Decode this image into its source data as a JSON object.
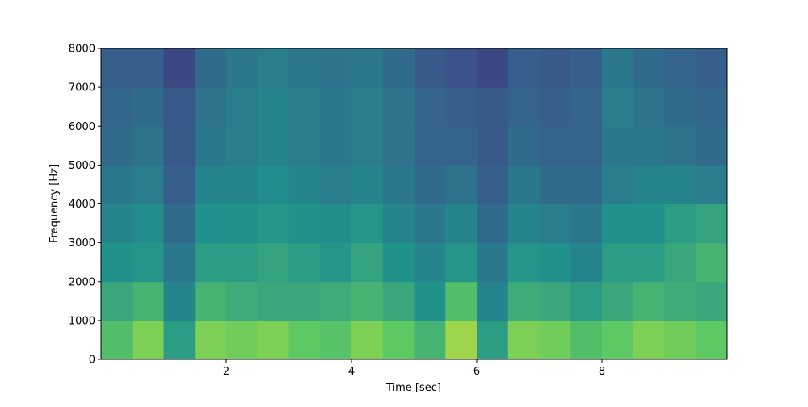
{
  "chart_data": {
    "type": "heatmap",
    "xlabel": "Time [sec]",
    "ylabel": "Frequency [Hz]",
    "xlim": [
      0,
      10
    ],
    "ylim": [
      0,
      8000
    ],
    "xticks": [
      2,
      4,
      6,
      8
    ],
    "yticks": [
      0,
      1000,
      2000,
      3000,
      4000,
      5000,
      6000,
      7000,
      8000
    ],
    "colormap": "viridis",
    "clim": [
      0,
      1
    ],
    "x_bins": [
      0,
      0.5,
      1,
      1.5,
      2,
      2.5,
      3,
      3.5,
      4,
      4.5,
      5,
      5.5,
      6,
      6.5,
      7,
      7.5,
      8,
      8.5,
      9,
      9.5,
      10
    ],
    "y_bins": [
      0,
      1000,
      2000,
      3000,
      4000,
      5000,
      6000,
      7000,
      8000
    ],
    "values": [
      [
        0.7,
        0.8,
        0.55,
        0.8,
        0.78,
        0.8,
        0.75,
        0.72,
        0.8,
        0.75,
        0.65,
        0.85,
        0.55,
        0.8,
        0.78,
        0.7,
        0.75,
        0.8,
        0.78,
        0.75
      ],
      [
        0.6,
        0.65,
        0.45,
        0.65,
        0.62,
        0.6,
        0.6,
        0.62,
        0.65,
        0.6,
        0.5,
        0.7,
        0.45,
        0.62,
        0.6,
        0.55,
        0.6,
        0.65,
        0.62,
        0.6
      ],
      [
        0.5,
        0.52,
        0.4,
        0.55,
        0.55,
        0.58,
        0.55,
        0.52,
        0.58,
        0.5,
        0.45,
        0.52,
        0.4,
        0.52,
        0.5,
        0.45,
        0.55,
        0.55,
        0.6,
        0.65
      ],
      [
        0.45,
        0.48,
        0.35,
        0.5,
        0.5,
        0.52,
        0.5,
        0.48,
        0.52,
        0.45,
        0.4,
        0.45,
        0.35,
        0.45,
        0.42,
        0.4,
        0.5,
        0.5,
        0.55,
        0.58
      ],
      [
        0.4,
        0.42,
        0.3,
        0.45,
        0.45,
        0.48,
        0.45,
        0.42,
        0.45,
        0.4,
        0.35,
        0.38,
        0.3,
        0.4,
        0.35,
        0.35,
        0.42,
        0.45,
        0.45,
        0.42
      ],
      [
        0.35,
        0.38,
        0.28,
        0.4,
        0.42,
        0.45,
        0.42,
        0.4,
        0.42,
        0.38,
        0.32,
        0.32,
        0.28,
        0.35,
        0.32,
        0.32,
        0.4,
        0.4,
        0.38,
        0.35
      ],
      [
        0.33,
        0.35,
        0.28,
        0.38,
        0.42,
        0.45,
        0.42,
        0.4,
        0.42,
        0.38,
        0.32,
        0.3,
        0.28,
        0.32,
        0.3,
        0.32,
        0.42,
        0.38,
        0.35,
        0.33
      ],
      [
        0.3,
        0.3,
        0.22,
        0.35,
        0.4,
        0.42,
        0.4,
        0.38,
        0.4,
        0.35,
        0.28,
        0.25,
        0.22,
        0.3,
        0.28,
        0.3,
        0.4,
        0.35,
        0.32,
        0.3
      ]
    ]
  }
}
